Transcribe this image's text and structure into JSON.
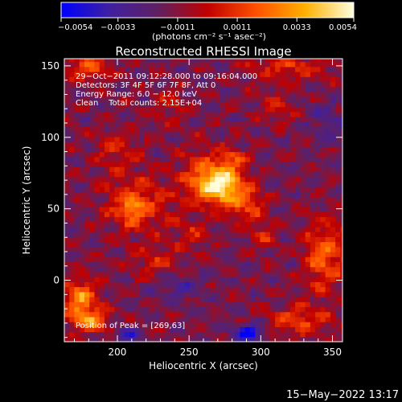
{
  "chart_data": {
    "type": "heatmap",
    "title": "Reconstructed RHESSI Image",
    "xlabel": "Heliocentric X (arcsec)",
    "ylabel": "Heliocentric Y (arcsec)",
    "xlim": [
      163,
      357
    ],
    "ylim": [
      -43,
      155
    ],
    "x_ticks": [
      200,
      250,
      300,
      350
    ],
    "y_ticks": [
      0,
      50,
      100,
      150
    ],
    "colorbar": {
      "min": -0.0054,
      "max": 0.0054,
      "tick_values": [
        -0.0054,
        -0.0033,
        -0.0011,
        0.0011,
        0.0033,
        0.0054
      ],
      "tick_labels": [
        "−0.0054",
        "−0.0033",
        "−0.0011",
        "0.0011",
        "0.0033",
        "0.0054"
      ],
      "unit": "(photons cm⁻² s⁻¹ asec⁻²)",
      "gradient": [
        "#0000ff",
        "#4020a0",
        "#602060",
        "#c00000",
        "#ff5000",
        "#ffb000",
        "#ffffe0"
      ]
    },
    "info_lines": [
      "29−Oct−2011 09:12:28.000 to 09:16:04.000",
      "Detectors: 3F 4F 5F 6F 7F 8F, Att 0",
      "Energy Range: 6.0 − 12.0 keV",
      "Clean    Total counts: 2.15E+04"
    ],
    "peak_label": "Position of Peak = [269,63]",
    "peak": [
      269,
      63
    ],
    "blobs": [
      {
        "x": 271,
        "y": 66,
        "sx": 15,
        "sy": 13,
        "v": 0.0062
      },
      {
        "x": 255,
        "y": 70,
        "sx": 14,
        "sy": 22,
        "v": 0.0022
      },
      {
        "x": 288,
        "y": 52,
        "sx": 14,
        "sy": 12,
        "v": 0.0026
      },
      {
        "x": 278,
        "y": 84,
        "sx": 10,
        "sy": 8,
        "v": 0.0022
      },
      {
        "x": 212,
        "y": 52,
        "sx": 22,
        "sy": 20,
        "v": 0.0028
      },
      {
        "x": 208,
        "y": 48,
        "sx": 7,
        "sy": 7,
        "v": 0.0022
      },
      {
        "x": 198,
        "y": 90,
        "sx": 15,
        "sy": 12,
        "v": 0.0018
      },
      {
        "x": 225,
        "y": 10,
        "sx": 18,
        "sy": 12,
        "v": 0.0017
      },
      {
        "x": 172,
        "y": -15,
        "sx": 12,
        "sy": 14,
        "v": 0.0042
      },
      {
        "x": 180,
        "y": -30,
        "sx": 12,
        "sy": 8,
        "v": 0.0034
      },
      {
        "x": 178,
        "y": 148,
        "sx": 16,
        "sy": 10,
        "v": 0.0028
      },
      {
        "x": 318,
        "y": 148,
        "sx": 28,
        "sy": 10,
        "v": 0.0022
      },
      {
        "x": 343,
        "y": 15,
        "sx": 14,
        "sy": 24,
        "v": 0.0034
      },
      {
        "x": 325,
        "y": -30,
        "sx": 22,
        "sy": 10,
        "v": 0.0026
      },
      {
        "x": 310,
        "y": 120,
        "sx": 12,
        "sy": 10,
        "v": 0.0016
      },
      {
        "x": 235,
        "y": 120,
        "sx": 12,
        "sy": 12,
        "v": 0.0014
      },
      {
        "x": 300,
        "y": 30,
        "sx": 10,
        "sy": 10,
        "v": 0.0018
      },
      {
        "x": 250,
        "y": 30,
        "sx": 12,
        "sy": 10,
        "v": 0.0015
      },
      {
        "x": 290,
        "y": -38,
        "sx": 10,
        "sy": 6,
        "v": -0.0045
      },
      {
        "x": 205,
        "y": -40,
        "sx": 8,
        "sy": 5,
        "v": -0.003
      },
      {
        "x": 345,
        "y": 110,
        "sx": 12,
        "sy": 14,
        "v": -0.0015
      },
      {
        "x": 240,
        "y": -5,
        "sx": 18,
        "sy": 10,
        "v": -0.0016
      }
    ]
  },
  "footer": {
    "timestamp": "15−May−2022 13:17"
  }
}
